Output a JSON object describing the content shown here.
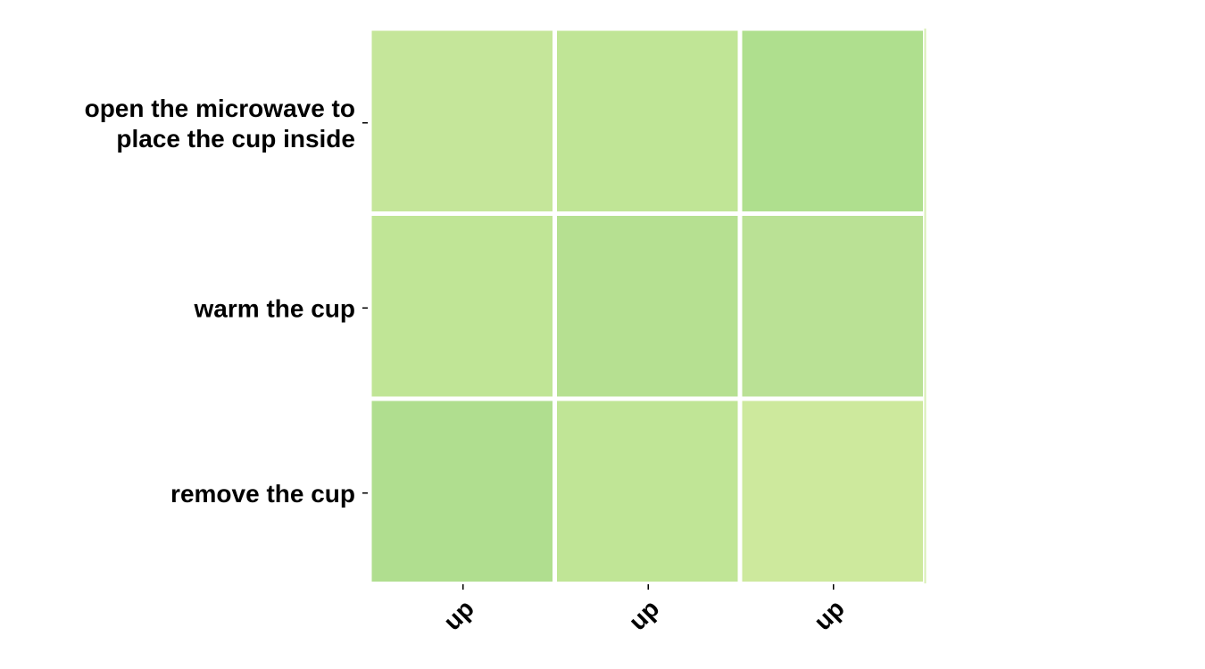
{
  "chart_data": {
    "type": "heatmap",
    "title": "",
    "xlabel": "",
    "ylabel": "",
    "x_categories": [
      "up",
      "up",
      "up"
    ],
    "y_categories": [
      "open the microwave to place the cup inside",
      "warm the cup",
      "remove the cup"
    ],
    "values": [
      [
        0.3,
        0.36,
        0.55
      ],
      [
        0.36,
        0.48,
        0.42
      ],
      [
        0.55,
        0.36,
        0.22
      ]
    ],
    "colors": [
      [
        "#c5e69a",
        "#c0e596",
        "#afdf8e"
      ],
      [
        "#c0e596",
        "#b6e091",
        "#bae195"
      ],
      [
        "#b0de8f",
        "#c0e596",
        "#cde99d"
      ]
    ],
    "grid": false,
    "legend": "none"
  }
}
